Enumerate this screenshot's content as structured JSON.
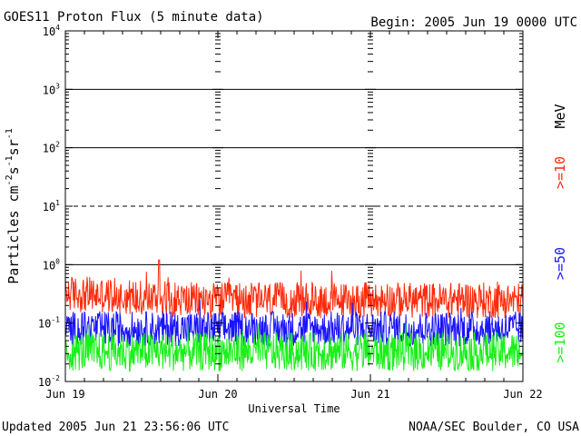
{
  "header": {
    "title": "GOES11 Proton Flux (5 minute data)",
    "begin": "Begin: 2005 Jun 19 0000 UTC"
  },
  "footer": {
    "updated": "Updated 2005 Jun 21 23:56:06 UTC",
    "credit": "NOAA/SEC Boulder, CO USA"
  },
  "colors": {
    "ge10": "#ff2a0a",
    "ge50": "#1a14ff",
    "ge100": "#18f018",
    "axis": "#000000",
    "background": "#ffffff"
  },
  "chart_data": {
    "type": "line",
    "title": "GOES11 Proton Flux (5 minute data)",
    "xlabel": "Universal Time",
    "ylabel_parts": [
      "Particles cm",
      "-2",
      "s",
      "-1",
      "sr",
      "-1"
    ],
    "y_scale": "log",
    "ylim": [
      0.01,
      10000
    ],
    "y_ticks": [
      {
        "base": "10",
        "exp": "-2",
        "value": 0.01
      },
      {
        "base": "10",
        "exp": "-1",
        "value": 0.1
      },
      {
        "base": "10",
        "exp": "0",
        "value": 1
      },
      {
        "base": "10",
        "exp": "1",
        "value": 10
      },
      {
        "base": "10",
        "exp": "2",
        "value": 100
      },
      {
        "base": "10",
        "exp": "3",
        "value": 1000
      },
      {
        "base": "10",
        "exp": "4",
        "value": 10000
      }
    ],
    "x_ticks": [
      "Jun 19",
      "Jun 20",
      "Jun 21",
      "Jun 22"
    ],
    "x_range_days": [
      0,
      3
    ],
    "threshold_lines": [
      {
        "value": 1,
        "style": "solid"
      },
      {
        "value": 10,
        "style": "dashed"
      },
      {
        "value": 100,
        "style": "solid"
      },
      {
        "value": 1000,
        "style": "solid"
      }
    ],
    "unit_label": "MeV",
    "series": [
      {
        "name": ">=10",
        "color": "#ff2a0a",
        "typical_range": [
          0.12,
          0.5
        ],
        "peak": 1.2
      },
      {
        "name": ">=50",
        "color": "#1a14ff",
        "typical_range": [
          0.04,
          0.16
        ],
        "peak": 0.45
      },
      {
        "name": ">=100",
        "color": "#18f018",
        "typical_range": [
          0.015,
          0.07
        ],
        "peak": 0.1
      }
    ],
    "legend_position": "right"
  }
}
